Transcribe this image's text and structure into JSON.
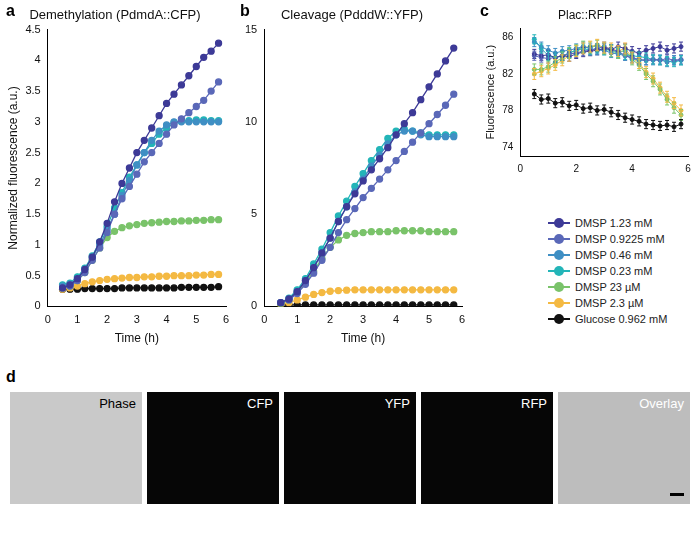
{
  "chart_data": [
    {
      "panel": "a",
      "type": "line",
      "title": "Demethylation (PdmdA::CFP)",
      "x_label": "Time (h)",
      "y_label": "Normalized fluorescence (a.u.)",
      "xlim": [
        0,
        6
      ],
      "xticks": [
        0,
        1,
        2,
        3,
        4,
        5,
        6
      ],
      "ylim": [
        0,
        4.5
      ],
      "yticks": [
        0,
        0.5,
        1,
        1.5,
        2,
        2.5,
        3,
        3.5,
        4,
        4.5
      ],
      "grid": false,
      "marker": "circle",
      "x": [
        0.5,
        0.75,
        1,
        1.25,
        1.5,
        1.75,
        2,
        2.25,
        2.5,
        2.75,
        3,
        3.25,
        3.5,
        3.75,
        4,
        4.25,
        4.5,
        4.75,
        5,
        5.25,
        5.5,
        5.75
      ],
      "series": [
        {
          "name": "DMSP 1.23 mM",
          "color": "#3d3a97",
          "values": [
            0.3,
            0.35,
            0.45,
            0.6,
            0.8,
            1.05,
            1.35,
            1.7,
            2.0,
            2.25,
            2.5,
            2.7,
            2.9,
            3.1,
            3.3,
            3.45,
            3.6,
            3.75,
            3.9,
            4.05,
            4.15,
            4.28
          ]
        },
        {
          "name": "DMSP 0.9225 mM",
          "color": "#5a68b8",
          "values": [
            0.3,
            0.33,
            0.42,
            0.55,
            0.75,
            0.95,
            1.2,
            1.5,
            1.75,
            1.95,
            2.15,
            2.35,
            2.5,
            2.65,
            2.8,
            2.95,
            3.05,
            3.15,
            3.25,
            3.35,
            3.5,
            3.65
          ]
        },
        {
          "name": "DMSP 0.46 mM",
          "color": "#3f8fc4",
          "values": [
            0.33,
            0.36,
            0.45,
            0.6,
            0.8,
            1.0,
            1.25,
            1.5,
            1.8,
            2.05,
            2.3,
            2.5,
            2.7,
            2.85,
            2.95,
            3.0,
            3.0,
            3.0,
            3.0,
            3.0,
            3.0,
            3.0
          ]
        },
        {
          "name": "DMSP 0.23 mM",
          "color": "#23b5b8",
          "values": [
            0.35,
            0.38,
            0.48,
            0.62,
            0.82,
            1.05,
            1.3,
            1.6,
            1.85,
            2.1,
            2.3,
            2.5,
            2.65,
            2.8,
            2.9,
            2.98,
            3.02,
            3.02,
            3.03,
            3.03,
            3.02,
            3.02
          ]
        },
        {
          "name": "DMSP 23 µM",
          "color": "#7ac36a",
          "values": [
            0.3,
            0.33,
            0.42,
            0.55,
            0.75,
            0.95,
            1.12,
            1.22,
            1.28,
            1.31,
            1.33,
            1.35,
            1.36,
            1.37,
            1.38,
            1.38,
            1.39,
            1.39,
            1.4,
            1.4,
            1.41,
            1.41
          ]
        },
        {
          "name": "DMSP 2.3 µM",
          "color": "#f4b942",
          "values": [
            0.28,
            0.3,
            0.33,
            0.37,
            0.4,
            0.42,
            0.44,
            0.45,
            0.46,
            0.47,
            0.47,
            0.48,
            0.48,
            0.49,
            0.49,
            0.5,
            0.5,
            0.5,
            0.51,
            0.51,
            0.52,
            0.52
          ]
        },
        {
          "name": "Glucose 0.962 mM",
          "color": "#111111",
          "values": [
            0.28,
            0.28,
            0.28,
            0.29,
            0.29,
            0.29,
            0.29,
            0.29,
            0.3,
            0.3,
            0.3,
            0.3,
            0.3,
            0.3,
            0.3,
            0.3,
            0.31,
            0.31,
            0.31,
            0.31,
            0.31,
            0.32
          ]
        }
      ]
    },
    {
      "panel": "b",
      "type": "line",
      "title": "Cleavage (PdddW::YFP)",
      "x_label": "Time (h)",
      "xlim": [
        0,
        6
      ],
      "xticks": [
        0,
        1,
        2,
        3,
        4,
        5,
        6
      ],
      "ylim": [
        0,
        15
      ],
      "yticks": [
        0,
        5,
        10,
        15
      ],
      "grid": false,
      "marker": "circle",
      "x": [
        0.5,
        0.75,
        1,
        1.25,
        1.5,
        1.75,
        2,
        2.25,
        2.5,
        2.75,
        3,
        3.25,
        3.5,
        3.75,
        4,
        4.25,
        4.5,
        4.75,
        5,
        5.25,
        5.5,
        5.75
      ],
      "series": [
        {
          "name": "DMSP 1.23 mM",
          "color": "#3d3a97",
          "values": [
            0.2,
            0.4,
            0.8,
            1.4,
            2.1,
            2.9,
            3.7,
            4.6,
            5.4,
            6.1,
            6.8,
            7.4,
            8.0,
            8.6,
            9.3,
            9.9,
            10.5,
            11.2,
            11.9,
            12.6,
            13.3,
            14.0
          ]
        },
        {
          "name": "DMSP 0.9225 mM",
          "color": "#5a68b8",
          "values": [
            0.2,
            0.35,
            0.7,
            1.2,
            1.8,
            2.5,
            3.2,
            4.0,
            4.7,
            5.3,
            5.9,
            6.4,
            6.9,
            7.4,
            7.9,
            8.4,
            8.9,
            9.4,
            9.9,
            10.4,
            10.9,
            11.5
          ]
        },
        {
          "name": "DMSP 0.46 mM",
          "color": "#3f8fc4",
          "values": [
            0.2,
            0.4,
            0.8,
            1.4,
            2.1,
            2.9,
            3.7,
            4.6,
            5.4,
            6.2,
            6.9,
            7.6,
            8.2,
            8.8,
            9.3,
            9.5,
            9.5,
            9.3,
            9.2,
            9.2,
            9.2,
            9.2
          ]
        },
        {
          "name": "DMSP 0.23 mM",
          "color": "#23b5b8",
          "values": [
            0.2,
            0.45,
            0.9,
            1.5,
            2.3,
            3.1,
            4.0,
            4.9,
            5.7,
            6.5,
            7.2,
            7.9,
            8.5,
            9.1,
            9.5,
            9.6,
            9.5,
            9.4,
            9.3,
            9.3,
            9.3,
            9.3
          ]
        },
        {
          "name": "DMSP 23 µM",
          "color": "#7ac36a",
          "values": [
            0.15,
            0.35,
            0.75,
            1.3,
            1.9,
            2.6,
            3.2,
            3.6,
            3.85,
            3.95,
            4.0,
            4.05,
            4.05,
            4.05,
            4.1,
            4.1,
            4.1,
            4.1,
            4.05,
            4.05,
            4.05,
            4.05
          ]
        },
        {
          "name": "DMSP 2.3 µM",
          "color": "#f4b942",
          "values": [
            0.1,
            0.2,
            0.35,
            0.5,
            0.65,
            0.75,
            0.82,
            0.86,
            0.88,
            0.9,
            0.9,
            0.9,
            0.9,
            0.9,
            0.9,
            0.9,
            0.9,
            0.9,
            0.9,
            0.9,
            0.9,
            0.9
          ]
        },
        {
          "name": "Glucose 0.962 mM",
          "color": "#111111",
          "values": [
            0.08,
            0.08,
            0.08,
            0.08,
            0.08,
            0.08,
            0.08,
            0.08,
            0.08,
            0.08,
            0.08,
            0.08,
            0.08,
            0.08,
            0.08,
            0.08,
            0.08,
            0.08,
            0.08,
            0.08,
            0.08,
            0.08
          ]
        }
      ]
    },
    {
      "panel": "c",
      "type": "line",
      "title": "Plac::RFP",
      "y_label": "Fluorescence (a.u.)",
      "xlim": [
        0,
        6
      ],
      "xticks": [
        0,
        2,
        4,
        6
      ],
      "ylim": [
        73,
        87
      ],
      "yticks": [
        74,
        78,
        82,
        86
      ],
      "grid": false,
      "marker": "circle",
      "x": [
        0.5,
        0.75,
        1,
        1.25,
        1.5,
        1.75,
        2,
        2.25,
        2.5,
        2.75,
        3,
        3.25,
        3.5,
        3.75,
        4,
        4.25,
        4.5,
        4.75,
        5,
        5.25,
        5.5,
        5.75
      ],
      "series": [
        {
          "name": "DMSP 1.23 mM",
          "color": "#3d3a97",
          "values": [
            84.2,
            84.0,
            84.1,
            83.8,
            84.0,
            83.9,
            84.2,
            84.4,
            84.5,
            84.6,
            84.8,
            84.7,
            85.0,
            84.8,
            84.5,
            84.3,
            84.6,
            84.8,
            85.0,
            84.6,
            84.8,
            85.0
          ],
          "errors": [
            0.5,
            0.5,
            0.5,
            0.5,
            0.5,
            0.5,
            0.5,
            0.5,
            0.5,
            0.5,
            0.5,
            0.5,
            0.5,
            0.5,
            0.5,
            0.5,
            0.5,
            0.5,
            0.5,
            0.5,
            0.5,
            0.5
          ]
        },
        {
          "name": "DMSP 0.9225 mM",
          "color": "#5a68b8",
          "values": [
            84.0,
            83.8,
            83.7,
            83.8,
            84.0,
            84.2,
            84.3,
            84.5,
            84.6,
            84.8,
            85.0,
            84.7,
            84.5,
            84.0,
            83.8,
            83.6,
            83.5,
            83.6,
            83.5,
            83.7,
            83.5,
            83.6
          ],
          "errors": [
            0.5,
            0.5,
            0.5,
            0.5,
            0.5,
            0.5,
            0.5,
            0.5,
            0.5,
            0.5,
            0.5,
            0.5,
            0.5,
            0.5,
            0.5,
            0.5,
            0.5,
            0.5,
            0.5,
            0.5,
            0.5,
            0.5
          ]
        },
        {
          "name": "DMSP 0.46 mM",
          "color": "#3f8fc4",
          "values": [
            85.5,
            85.0,
            84.6,
            84.3,
            84.5,
            84.6,
            84.8,
            85.0,
            84.8,
            84.6,
            84.6,
            84.3,
            84.2,
            84.0,
            83.7,
            83.5,
            83.5,
            83.5,
            83.6,
            83.3,
            83.5,
            83.5
          ],
          "errors": [
            0.5,
            0.5,
            0.5,
            0.5,
            0.5,
            0.5,
            0.5,
            0.5,
            0.5,
            0.5,
            0.5,
            0.5,
            0.5,
            0.5,
            0.5,
            0.5,
            0.5,
            0.5,
            0.5,
            0.5,
            0.5,
            0.5
          ]
        },
        {
          "name": "DMSP 0.23 mM",
          "color": "#23b5b8",
          "values": [
            85.8,
            84.8,
            84.0,
            83.8,
            84.0,
            84.3,
            84.6,
            84.8,
            84.6,
            84.8,
            84.6,
            84.7,
            84.3,
            84.1,
            84.0,
            83.9,
            83.8,
            83.6,
            83.5,
            83.4,
            83.3,
            83.5
          ],
          "errors": [
            0.5,
            0.5,
            0.5,
            0.5,
            0.5,
            0.5,
            0.5,
            0.5,
            0.5,
            0.5,
            0.5,
            0.5,
            0.5,
            0.5,
            0.5,
            0.5,
            0.5,
            0.5,
            0.5,
            0.5,
            0.5,
            0.5
          ]
        },
        {
          "name": "DMSP 23 µM",
          "color": "#7ac36a",
          "values": [
            82.5,
            82.5,
            82.8,
            83.3,
            83.8,
            84.3,
            84.6,
            85.0,
            84.9,
            85.1,
            84.8,
            84.5,
            84.3,
            84.6,
            83.6,
            83.0,
            82.0,
            81.2,
            80.3,
            79.2,
            78.3,
            77.5
          ],
          "errors": [
            0.6,
            0.6,
            0.6,
            0.6,
            0.6,
            0.6,
            0.6,
            0.6,
            0.6,
            0.6,
            0.6,
            0.6,
            0.6,
            0.6,
            0.6,
            0.6,
            0.6,
            0.6,
            0.6,
            0.6,
            0.6,
            0.6
          ]
        },
        {
          "name": "DMSP 2.3 µM",
          "color": "#f4b942",
          "values": [
            82.0,
            82.3,
            82.6,
            83.0,
            83.5,
            84.0,
            84.5,
            84.8,
            85.0,
            85.2,
            84.9,
            84.8,
            84.5,
            84.8,
            83.8,
            83.2,
            82.2,
            81.5,
            80.5,
            79.5,
            78.8,
            78.0
          ],
          "errors": [
            0.6,
            0.6,
            0.6,
            0.6,
            0.6,
            0.6,
            0.6,
            0.6,
            0.6,
            0.6,
            0.6,
            0.6,
            0.6,
            0.6,
            0.6,
            0.6,
            0.6,
            0.6,
            0.6,
            0.6,
            0.6,
            0.6
          ]
        },
        {
          "name": "Glucose 0.962 mM",
          "color": "#111111",
          "values": [
            79.8,
            79.2,
            79.3,
            78.8,
            78.9,
            78.5,
            78.6,
            78.2,
            78.3,
            78.0,
            78.1,
            77.8,
            77.5,
            77.2,
            77.0,
            76.8,
            76.5,
            76.4,
            76.3,
            76.4,
            76.2,
            76.5
          ],
          "errors": [
            0.5,
            0.5,
            0.5,
            0.5,
            0.5,
            0.5,
            0.5,
            0.5,
            0.5,
            0.5,
            0.5,
            0.5,
            0.5,
            0.5,
            0.5,
            0.5,
            0.5,
            0.5,
            0.5,
            0.5,
            0.5,
            0.5
          ]
        }
      ]
    }
  ],
  "images": {
    "panel": "d",
    "labels": [
      "Phase",
      "CFP",
      "YFP",
      "RFP",
      "Overlay"
    ]
  }
}
